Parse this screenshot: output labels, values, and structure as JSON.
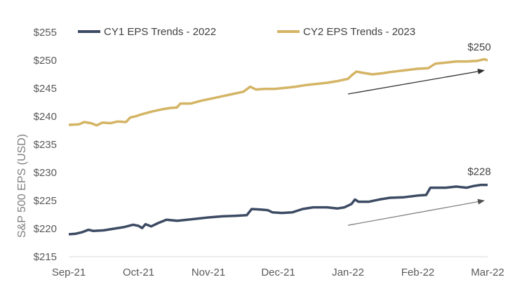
{
  "chart_data": {
    "type": "line",
    "title": "",
    "xlabel": "",
    "ylabel": "S&P 500 EPS (USD)",
    "ylim": [
      215,
      255
    ],
    "yticks": [
      215,
      220,
      225,
      230,
      235,
      240,
      245,
      250,
      255
    ],
    "ytick_labels": [
      "$215",
      "$220",
      "$225",
      "$230",
      "$235",
      "$240",
      "$245",
      "$250",
      "$255"
    ],
    "x_categories": [
      "Sep-21",
      "Oct-21",
      "Nov-21",
      "Dec-21",
      "Jan-22",
      "Feb-22",
      "Mar-22"
    ],
    "grid": false,
    "legend_position": "top",
    "series": [
      {
        "name": "CY1 EPS Trends - 2022",
        "color": "#3c4a63",
        "points": [
          [
            0.0,
            219.0
          ],
          [
            0.1,
            219.1
          ],
          [
            0.2,
            219.4
          ],
          [
            0.28,
            219.8
          ],
          [
            0.35,
            219.6
          ],
          [
            0.5,
            219.7
          ],
          [
            0.65,
            220.0
          ],
          [
            0.8,
            220.3
          ],
          [
            0.92,
            220.7
          ],
          [
            1.0,
            220.5
          ],
          [
            1.05,
            220.1
          ],
          [
            1.1,
            220.8
          ],
          [
            1.18,
            220.4
          ],
          [
            1.28,
            221.0
          ],
          [
            1.4,
            221.6
          ],
          [
            1.55,
            221.4
          ],
          [
            1.7,
            221.6
          ],
          [
            1.85,
            221.8
          ],
          [
            2.0,
            222.0
          ],
          [
            2.2,
            222.2
          ],
          [
            2.4,
            222.3
          ],
          [
            2.55,
            222.4
          ],
          [
            2.62,
            223.5
          ],
          [
            2.75,
            223.4
          ],
          [
            2.85,
            223.3
          ],
          [
            2.92,
            222.9
          ],
          [
            3.05,
            222.8
          ],
          [
            3.2,
            222.9
          ],
          [
            3.35,
            223.5
          ],
          [
            3.5,
            223.8
          ],
          [
            3.7,
            223.8
          ],
          [
            3.85,
            223.6
          ],
          [
            3.95,
            223.8
          ],
          [
            4.05,
            224.4
          ],
          [
            4.1,
            225.2
          ],
          [
            4.15,
            224.8
          ],
          [
            4.3,
            224.8
          ],
          [
            4.45,
            225.2
          ],
          [
            4.6,
            225.5
          ],
          [
            4.8,
            225.6
          ],
          [
            5.0,
            225.9
          ],
          [
            5.12,
            226.0
          ],
          [
            5.18,
            227.3
          ],
          [
            5.4,
            227.3
          ],
          [
            5.55,
            227.5
          ],
          [
            5.7,
            227.3
          ],
          [
            5.8,
            227.6
          ],
          [
            5.9,
            227.8
          ],
          [
            6.0,
            227.8
          ]
        ]
      },
      {
        "name": "CY2 EPS Trends - 2023",
        "color": "#d4b465",
        "points": [
          [
            0.0,
            238.5
          ],
          [
            0.15,
            238.6
          ],
          [
            0.22,
            239.0
          ],
          [
            0.32,
            238.8
          ],
          [
            0.4,
            238.4
          ],
          [
            0.48,
            238.9
          ],
          [
            0.6,
            238.8
          ],
          [
            0.7,
            239.1
          ],
          [
            0.82,
            239.0
          ],
          [
            0.88,
            239.8
          ],
          [
            0.95,
            240.0
          ],
          [
            1.05,
            240.4
          ],
          [
            1.2,
            240.9
          ],
          [
            1.35,
            241.3
          ],
          [
            1.45,
            241.5
          ],
          [
            1.55,
            241.6
          ],
          [
            1.6,
            242.3
          ],
          [
            1.75,
            242.3
          ],
          [
            1.9,
            242.8
          ],
          [
            2.05,
            243.2
          ],
          [
            2.2,
            243.6
          ],
          [
            2.35,
            244.0
          ],
          [
            2.5,
            244.4
          ],
          [
            2.6,
            245.3
          ],
          [
            2.68,
            244.8
          ],
          [
            2.8,
            244.9
          ],
          [
            2.95,
            244.9
          ],
          [
            3.1,
            245.1
          ],
          [
            3.25,
            245.3
          ],
          [
            3.4,
            245.6
          ],
          [
            3.55,
            245.8
          ],
          [
            3.7,
            246.0
          ],
          [
            3.85,
            246.3
          ],
          [
            4.0,
            246.7
          ],
          [
            4.05,
            247.3
          ],
          [
            4.12,
            248.0
          ],
          [
            4.2,
            247.8
          ],
          [
            4.35,
            247.5
          ],
          [
            4.5,
            247.7
          ],
          [
            4.6,
            247.9
          ],
          [
            4.8,
            248.2
          ],
          [
            5.0,
            248.5
          ],
          [
            5.15,
            248.6
          ],
          [
            5.25,
            249.4
          ],
          [
            5.4,
            249.6
          ],
          [
            5.55,
            249.8
          ],
          [
            5.7,
            249.8
          ],
          [
            5.85,
            249.9
          ],
          [
            5.95,
            250.2
          ],
          [
            6.0,
            250.0
          ]
        ]
      }
    ],
    "annotations": [
      {
        "label": "$250",
        "series": "CY2 EPS Trends - 2023"
      },
      {
        "label": "$228",
        "series": "CY1 EPS Trends - 2022"
      }
    ],
    "trend_arrows": [
      {
        "from": [
          4.0,
          244.0
        ],
        "to": [
          5.95,
          248.2
        ],
        "color": "#404040"
      },
      {
        "from": [
          4.0,
          220.6
        ],
        "to": [
          5.95,
          225.0
        ],
        "color": "#808080"
      }
    ]
  }
}
